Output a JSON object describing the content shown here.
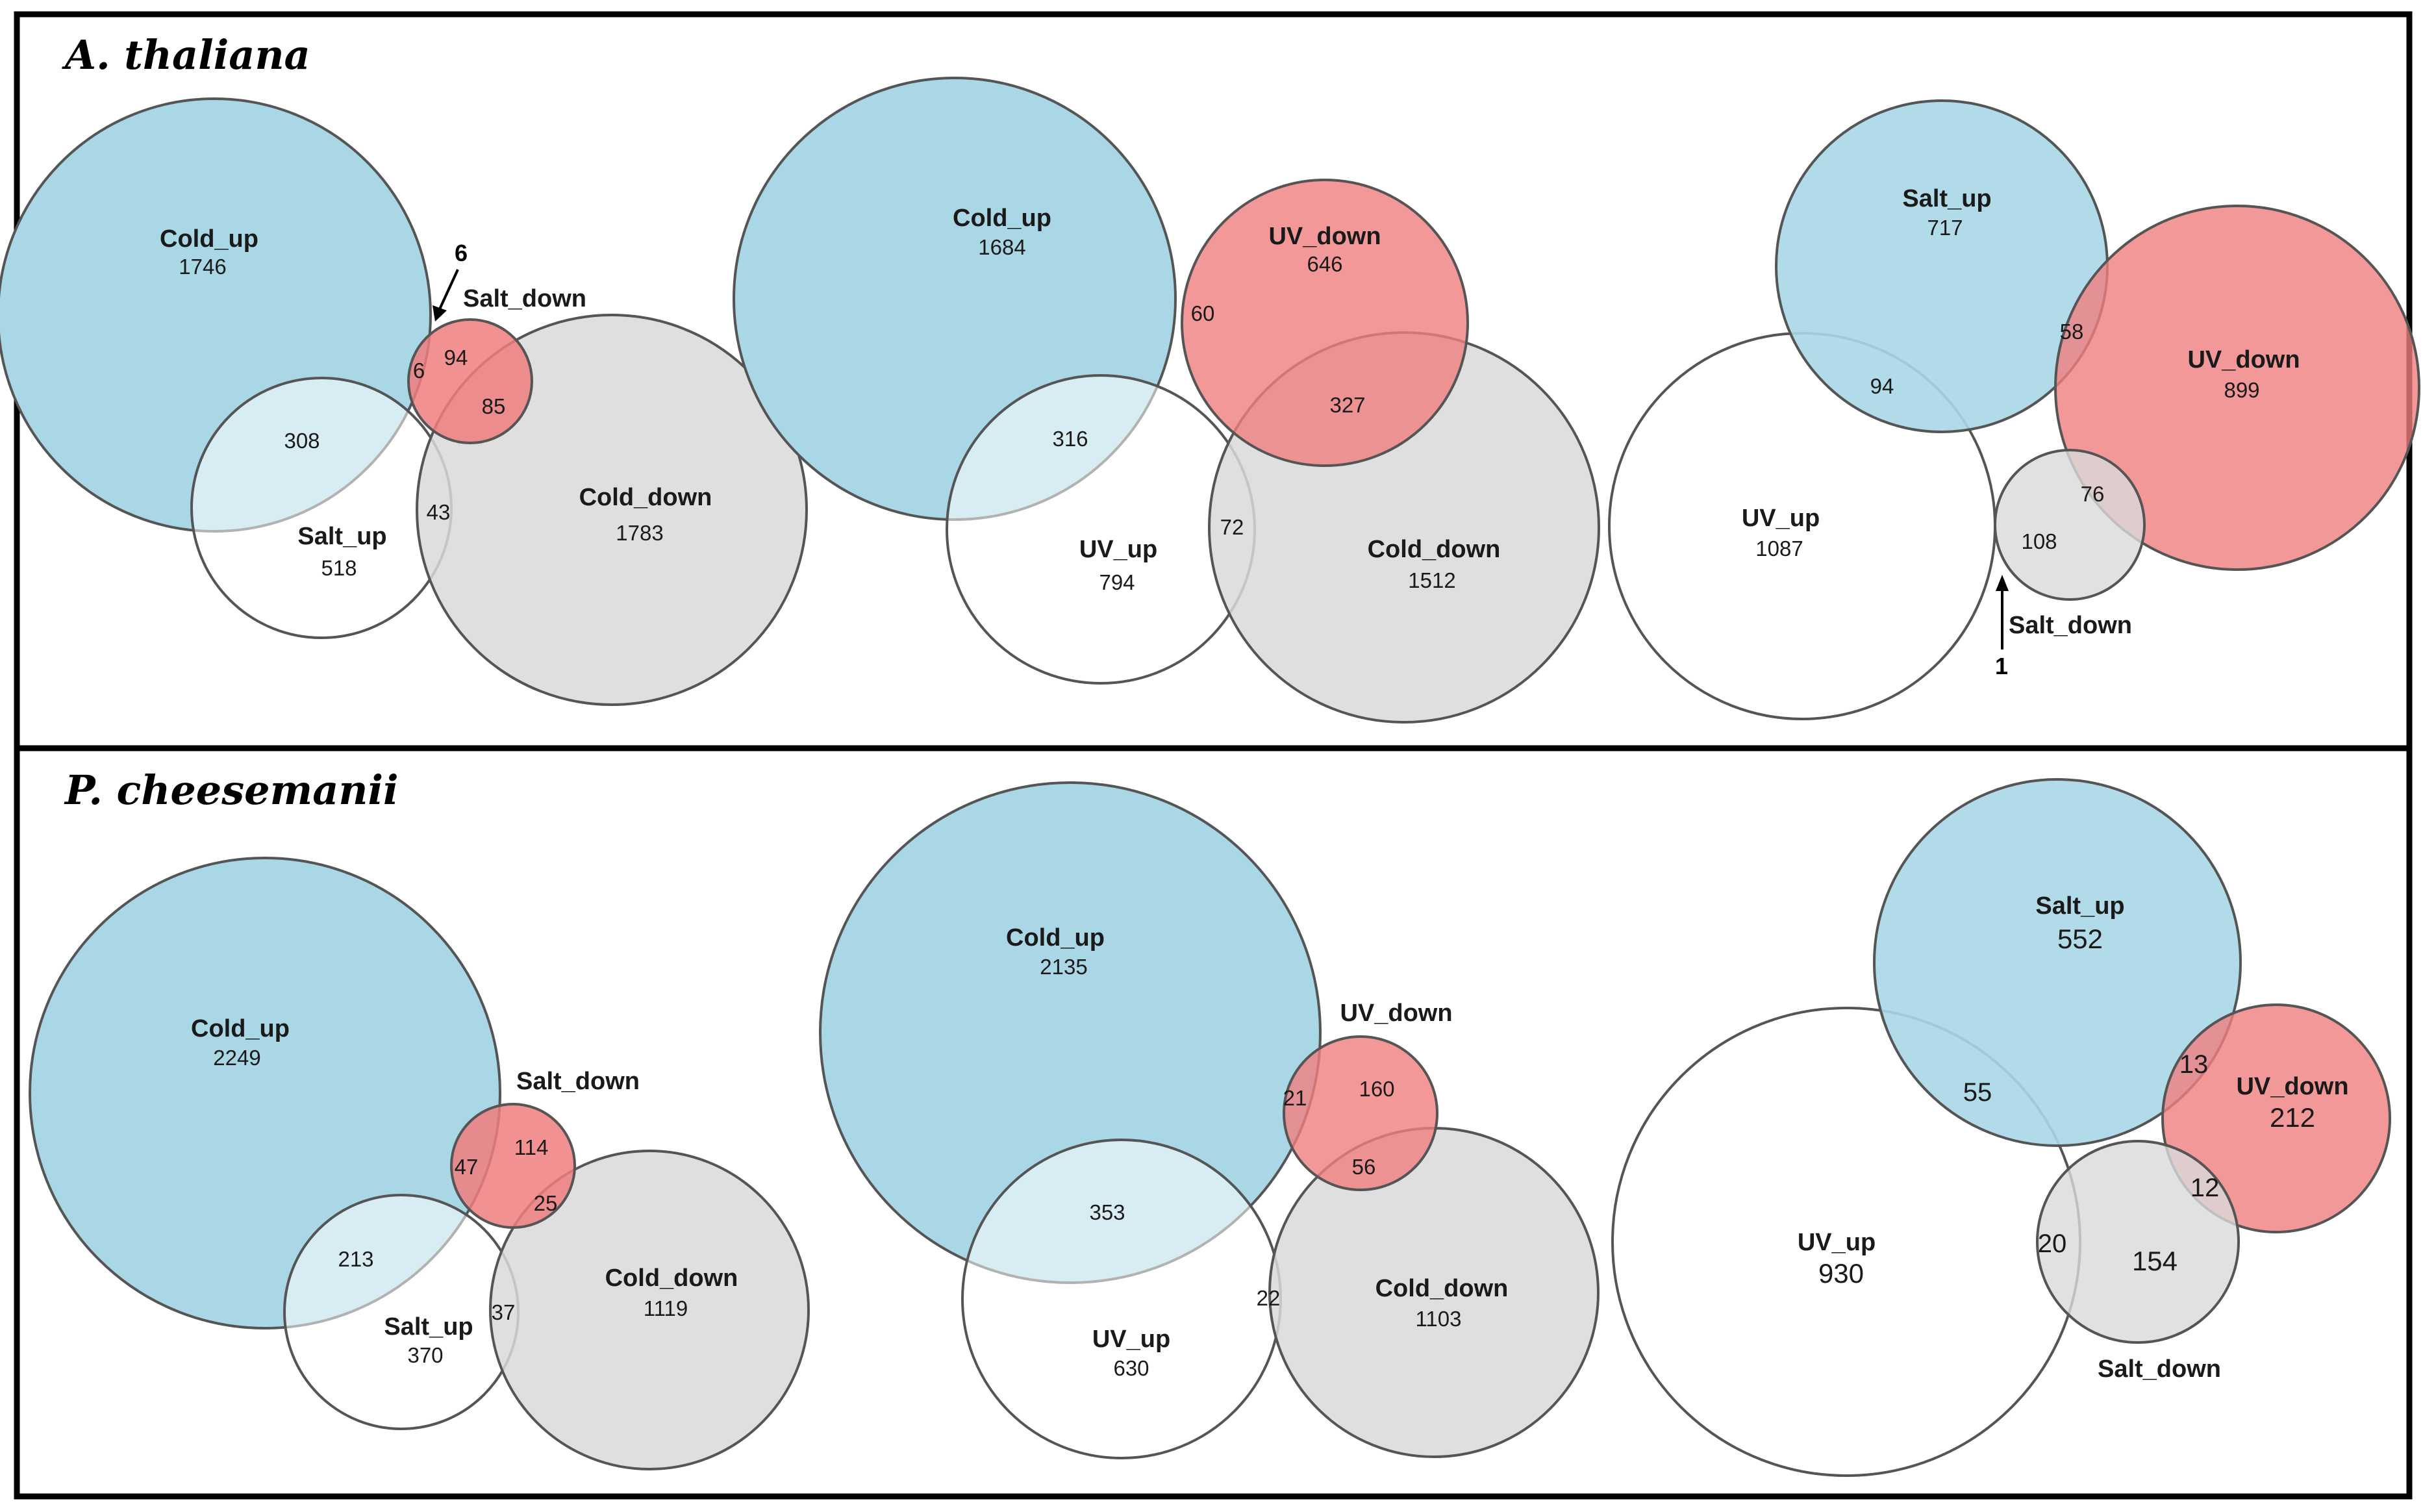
{
  "colors": {
    "blue": "#a9d7e5",
    "red": "#f07e7e",
    "gray": "#d9d9d9",
    "white": "#ffffff"
  },
  "panels": [
    {
      "species": "A. thaliana",
      "diagrams": [
        {
          "sets": [
            {
              "name": "Cold_up",
              "count": "1746",
              "color": "blue"
            },
            {
              "name": "Salt_down",
              "count": "94",
              "color": "red"
            },
            {
              "name": "Salt_up",
              "count": "518",
              "color": "white"
            },
            {
              "name": "Cold_down",
              "count": "1783",
              "color": "gray"
            }
          ],
          "overlaps": [
            "6",
            "308",
            "85",
            "43"
          ],
          "annotation": "6"
        },
        {
          "sets": [
            {
              "name": "Cold_up",
              "count": "1684",
              "color": "blue"
            },
            {
              "name": "UV_down",
              "count": "646",
              "color": "red"
            },
            {
              "name": "UV_up",
              "count": "794",
              "color": "white"
            },
            {
              "name": "Cold_down",
              "count": "1512",
              "color": "gray"
            }
          ],
          "overlaps": [
            "60",
            "316",
            "327",
            "72"
          ]
        },
        {
          "sets": [
            {
              "name": "Salt_up",
              "count": "717",
              "color": "blue"
            },
            {
              "name": "UV_down",
              "count": "899",
              "color": "red"
            },
            {
              "name": "UV_up",
              "count": "1087",
              "color": "white"
            },
            {
              "name": "Salt_down",
              "count": "108",
              "color": "gray"
            }
          ],
          "overlaps": [
            "58",
            "94",
            "76"
          ],
          "annotation": "1"
        }
      ]
    },
    {
      "species": "P. cheesemanii",
      "diagrams": [
        {
          "sets": [
            {
              "name": "Cold_up",
              "count": "2249",
              "color": "blue"
            },
            {
              "name": "Salt_down",
              "count": "114",
              "color": "red"
            },
            {
              "name": "Salt_up",
              "count": "370",
              "color": "white"
            },
            {
              "name": "Cold_down",
              "count": "1119",
              "color": "gray"
            }
          ],
          "overlaps": [
            "47",
            "25",
            "213",
            "37"
          ]
        },
        {
          "sets": [
            {
              "name": "Cold_up",
              "count": "2135",
              "color": "blue"
            },
            {
              "name": "UV_down",
              "count": "160",
              "color": "red"
            },
            {
              "name": "UV_up",
              "count": "630",
              "color": "white"
            },
            {
              "name": "Cold_down",
              "count": "1103",
              "color": "gray"
            }
          ],
          "overlaps": [
            "21",
            "56",
            "353",
            "22"
          ]
        },
        {
          "sets": [
            {
              "name": "Salt_up",
              "count": "552",
              "color": "blue"
            },
            {
              "name": "UV_down",
              "count": "212",
              "color": "red"
            },
            {
              "name": "UV_up",
              "count": "930",
              "color": "white"
            },
            {
              "name": "Salt_down",
              "count": "154",
              "color": "gray"
            }
          ],
          "overlaps": [
            "13",
            "55",
            "12",
            "20"
          ]
        }
      ]
    }
  ]
}
